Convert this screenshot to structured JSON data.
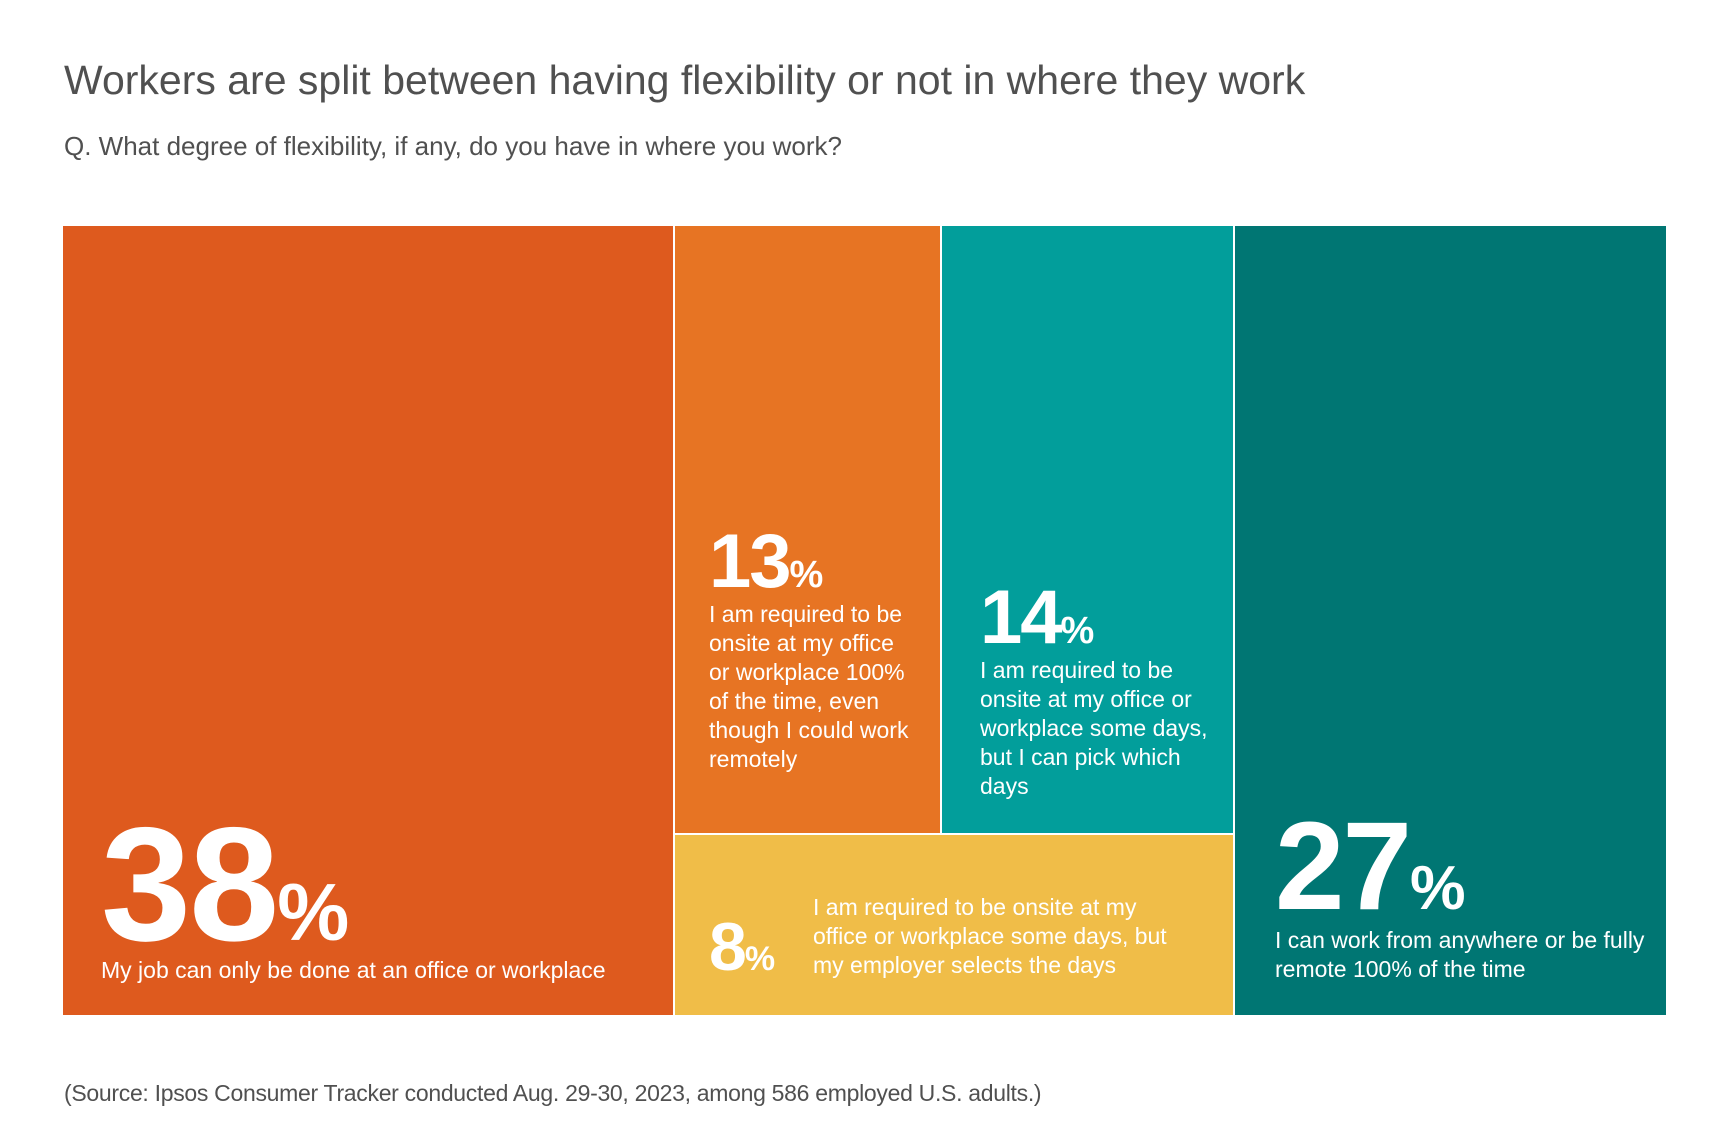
{
  "title": "Workers are split between having flexibility or not in where they work",
  "subtitle": "Q. What degree of flexibility,  if any, do you have in where you work?",
  "source": "(Source: Ipsos Consumer Tracker conducted Aug. 29-30, 2023, among 586 employed U.S. adults.)",
  "chart_data": {
    "type": "treemap",
    "title": "Workers are split between having flexibility or not in where they work",
    "unit": "%",
    "segments": [
      {
        "value": 38,
        "number": "38",
        "pct": "%",
        "label": "My job can only be done at an office or workplace",
        "color": "#DE5A1E"
      },
      {
        "value": 13,
        "number": "13",
        "pct": "%",
        "label": "I am required to be onsite at my office or workplace 100% of the time, even though I could work remotely",
        "color": "#E77423"
      },
      {
        "value": 14,
        "number": "14",
        "pct": "%",
        "label": "I am required to be onsite at my office or workplace some days, but I can pick which days",
        "color": "#029E9B"
      },
      {
        "value": 8,
        "number": "8",
        "pct": "%",
        "label": "I am required to be onsite at my office or workplace some days, but my employer selects the days",
        "color": "#F0BD48"
      },
      {
        "value": 27,
        "number": "27",
        "pct": "%",
        "label": "I can work from anywhere or be fully remote 100% of the time",
        "color": "#007673"
      }
    ]
  }
}
